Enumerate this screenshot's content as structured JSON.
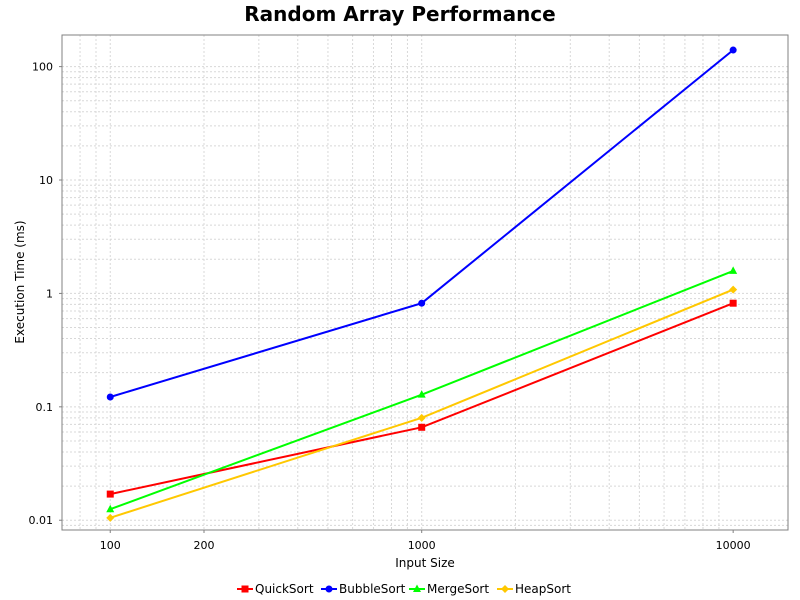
{
  "chart_data": {
    "type": "line",
    "title": "Random Array Performance",
    "xlabel": "Input Size",
    "ylabel": "Execution Time (ms)",
    "x_scale": "log",
    "y_scale": "log",
    "xlim": [
      70,
      15000
    ],
    "ylim": [
      0.0082,
      190
    ],
    "x_ticks": [
      {
        "value": 100,
        "label": "100"
      },
      {
        "value": 200,
        "label": "200"
      },
      {
        "value": 1000,
        "label": "1000"
      },
      {
        "value": 10000,
        "label": "10000"
      }
    ],
    "y_ticks": [
      {
        "value": 0.01,
        "label": "0.01"
      },
      {
        "value": 0.1,
        "label": "0.1"
      },
      {
        "value": 1,
        "label": "1"
      },
      {
        "value": 10,
        "label": "10"
      },
      {
        "value": 100,
        "label": "100"
      }
    ],
    "grid": true,
    "legend_position": "bottom",
    "x": [
      100,
      1000,
      10000
    ],
    "series": [
      {
        "name": "QuickSort",
        "color": "#ff0000",
        "marker": "square",
        "values": [
          0.017,
          0.066,
          0.82
        ]
      },
      {
        "name": "BubbleSort",
        "color": "#0000ff",
        "marker": "circle",
        "values": [
          0.122,
          0.82,
          140
        ]
      },
      {
        "name": "MergeSort",
        "color": "#00ff00",
        "marker": "triangle",
        "values": [
          0.0125,
          0.128,
          1.58
        ]
      },
      {
        "name": "HeapSort",
        "color": "#ffc800",
        "marker": "diamond",
        "values": [
          0.0105,
          0.08,
          1.08
        ]
      }
    ]
  }
}
